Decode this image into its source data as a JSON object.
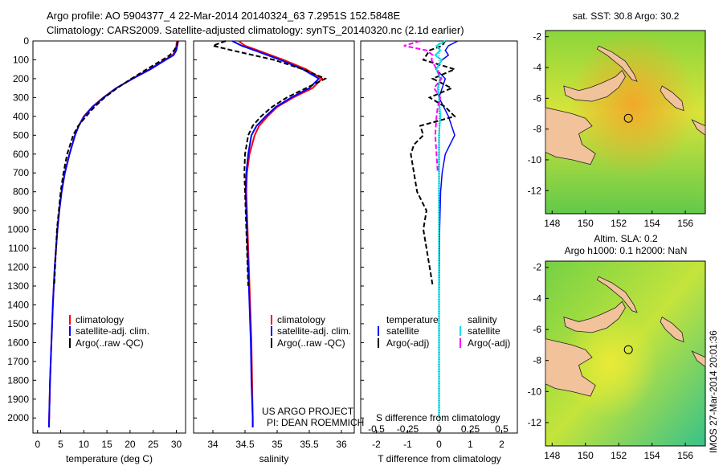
{
  "header": {
    "line1": "Argo profile: AO 5904377_4 22-Mar-2014 20140324_63 7.2951S 152.5848E",
    "line2": "Climatology: CARS2009. Satellite-adjusted climatology: synTS_20140320.nc (2.1d earlier)"
  },
  "colors": {
    "climatology": "#ff0000",
    "satellite": "#0000ff",
    "argo": "#000000",
    "sal_satellite": "#00e5ee",
    "sal_argo": "#ff00ff",
    "land": "#f2c29a"
  },
  "chart_data": [
    {
      "type": "line",
      "name": "temperature-profile",
      "xlabel": "temperature (deg C)",
      "ylabel": "",
      "xlim": [
        -1,
        32
      ],
      "ylim": [
        2080,
        0
      ],
      "xticks": [
        "0",
        "5",
        "10",
        "15",
        "20",
        "25",
        "30"
      ],
      "yticks": [
        "0",
        "100",
        "200",
        "300",
        "400",
        "500",
        "600",
        "700",
        "800",
        "900",
        "1000",
        "1100",
        "1200",
        "1300",
        "1400",
        "1500",
        "1600",
        "1700",
        "1800",
        "1900",
        "2000"
      ],
      "legend": [
        "climatology",
        "satellite-adj. clim.",
        "Argo(..raw -QC)"
      ],
      "series": [
        {
          "name": "climatology",
          "depth": [
            0,
            25,
            50,
            75,
            100,
            150,
            200,
            250,
            300,
            350,
            400,
            450,
            500,
            600,
            700,
            800,
            900,
            1000,
            1200,
            1400,
            1600,
            1800,
            2000,
            2050
          ],
          "values": [
            30.1,
            30.0,
            29.8,
            29.2,
            27.5,
            24.2,
            20.5,
            17.0,
            14.2,
            11.8,
            10.0,
            8.9,
            8.1,
            6.9,
            5.9,
            5.2,
            4.7,
            4.3,
            3.7,
            3.3,
            3.0,
            2.7,
            2.5,
            2.45
          ]
        },
        {
          "name": "satellite-adj. clim.",
          "depth": [
            0,
            25,
            50,
            75,
            100,
            150,
            200,
            250,
            300,
            350,
            400,
            450,
            500,
            600,
            700,
            800,
            900,
            1000,
            1200,
            1400,
            1600,
            1800,
            2000,
            2050
          ],
          "values": [
            30.4,
            30.2,
            30.0,
            29.4,
            27.7,
            24.4,
            20.6,
            17.0,
            14.3,
            11.9,
            10.1,
            8.9,
            8.1,
            6.9,
            5.9,
            5.2,
            4.7,
            4.3,
            3.7,
            3.3,
            3.0,
            2.7,
            2.5,
            2.45
          ]
        },
        {
          "name": "Argo(..raw -QC)",
          "depth": [
            0,
            25,
            50,
            75,
            100,
            150,
            200,
            250,
            300,
            350,
            400,
            450,
            500,
            600,
            700,
            800,
            900,
            1000,
            1200,
            1300
          ],
          "values": [
            30.3,
            30.1,
            29.5,
            28.6,
            27.0,
            23.6,
            20.3,
            17.2,
            14.5,
            12.3,
            10.5,
            8.8,
            7.7,
            6.4,
            5.6,
            5.0,
            4.6,
            4.2,
            3.8,
            3.6
          ]
        }
      ]
    },
    {
      "type": "line",
      "name": "salinity-profile",
      "xlabel": "salinity",
      "xlim": [
        33.7,
        36.2
      ],
      "ylim": [
        2080,
        0
      ],
      "xticks": [
        "34",
        "34.5",
        "35",
        "35.5",
        "36"
      ],
      "legend": [
        "climatology",
        "satellite-adj. clim.",
        "Argo(..raw -QC)"
      ],
      "annotation": [
        "US ARGO PROJECT",
        "PI: DEAN ROEMMICH"
      ],
      "series": [
        {
          "name": "climatology",
          "depth": [
            0,
            25,
            50,
            100,
            150,
            200,
            250,
            300,
            350,
            400,
            450,
            500,
            600,
            700,
            800,
            1000,
            1200,
            1400,
            1600,
            1800,
            2000,
            2050
          ],
          "values": [
            34.4,
            34.5,
            34.7,
            35.1,
            35.45,
            35.7,
            35.55,
            35.25,
            35.0,
            34.85,
            34.72,
            34.65,
            34.57,
            34.53,
            34.52,
            34.54,
            34.56,
            34.58,
            34.6,
            34.61,
            34.62,
            34.62
          ]
        },
        {
          "name": "satellite-adj. clim.",
          "depth": [
            0,
            25,
            50,
            100,
            150,
            200,
            250,
            300,
            350,
            400,
            450,
            500,
            600,
            700,
            800,
            1000,
            1200,
            1400,
            1600,
            1800,
            2000,
            2050
          ],
          "values": [
            34.3,
            34.45,
            34.65,
            35.05,
            35.4,
            35.65,
            35.5,
            35.22,
            34.98,
            34.82,
            34.68,
            34.6,
            34.55,
            34.52,
            34.51,
            34.53,
            34.55,
            34.57,
            34.59,
            34.6,
            34.62,
            34.62
          ]
        },
        {
          "name": "Argo(..raw -QC)",
          "depth": [
            0,
            25,
            50,
            100,
            150,
            200,
            250,
            300,
            350,
            400,
            450,
            500,
            600,
            700,
            800,
            1000,
            1200,
            1300
          ],
          "values": [
            34.2,
            34.0,
            34.3,
            34.95,
            35.4,
            35.75,
            35.45,
            35.15,
            34.92,
            34.75,
            34.62,
            34.55,
            34.5,
            34.49,
            34.5,
            34.52,
            34.54,
            34.55
          ]
        }
      ]
    },
    {
      "type": "line",
      "name": "difference-profile",
      "xlabel": "T difference from climatology",
      "xlabel_top": "S difference from climatology",
      "xlim": [
        -2.5,
        2.5
      ],
      "ylim": [
        2080,
        0
      ],
      "xticks": [
        "-2",
        "-1",
        "0",
        "1",
        "2"
      ],
      "xticks_s": [
        "-0.5",
        "-0.25",
        "0",
        "0.25",
        "0.5"
      ],
      "legend_t_title": "temperature",
      "legend_s_title": "salinity",
      "legend": [
        "satellite",
        "Argo(-adj)",
        "satellite",
        "Argo(-adj)"
      ],
      "series": [
        {
          "name": "T satellite",
          "depth": [
            0,
            25,
            50,
            75,
            100,
            150,
            200,
            250,
            300,
            400,
            500,
            600,
            700,
            800,
            1000,
            1500,
            2000
          ],
          "values": [
            0.6,
            0.3,
            0.2,
            0.3,
            0.1,
            -0.1,
            0.2,
            0.1,
            0.0,
            0.3,
            0.5,
            0.2,
            0.1,
            0.05,
            0.02,
            0.0,
            0.0
          ]
        },
        {
          "name": "T Argo(-adj)",
          "depth": [
            0,
            25,
            50,
            75,
            100,
            150,
            200,
            250,
            300,
            350,
            400,
            450,
            500,
            550,
            600,
            700,
            800,
            900,
            1000,
            1100,
            1200,
            1300
          ],
          "values": [
            0.2,
            0.1,
            -0.3,
            -0.4,
            -0.5,
            0.5,
            -0.2,
            0.4,
            -0.3,
            0.2,
            0.5,
            -0.6,
            -0.5,
            -0.8,
            -0.9,
            -0.8,
            -0.7,
            -0.4,
            -0.5,
            -0.4,
            -0.3,
            -0.2
          ]
        },
        {
          "name": "S satellite",
          "depth": [
            0,
            25,
            50,
            75,
            100,
            150,
            200,
            250,
            300,
            400,
            500,
            700,
            1000,
            1500,
            2000
          ],
          "values": [
            0.05,
            -0.02,
            0.01,
            -0.03,
            0.02,
            -0.02,
            0.01,
            -0.01,
            0.0,
            0.01,
            0.0,
            0.0,
            0.0,
            0.0,
            0.0
          ]
        },
        {
          "name": "S Argo(-adj)",
          "depth": [
            0,
            25,
            50,
            75,
            100,
            150,
            200,
            250,
            300,
            350,
            400,
            500,
            600,
            700
          ],
          "values": [
            -0.15,
            -0.28,
            -0.1,
            -0.05,
            -0.06,
            -0.02,
            0.02,
            -0.04,
            0.01,
            -0.01,
            -0.02,
            -0.03,
            -0.02,
            -0.01
          ]
        }
      ]
    },
    {
      "type": "heatmap",
      "name": "sst-map",
      "title": "sat. SST: 30.8  Argo: 30.2",
      "xticks": [
        "148",
        "150",
        "152",
        "154",
        "156"
      ],
      "yticks": [
        "-2",
        "-4",
        "-6",
        "-8",
        "-10",
        "-12"
      ],
      "xlim": [
        147.6,
        157.2
      ],
      "ylim": [
        -13.5,
        -1.6
      ],
      "argo_position": {
        "lon": 152.58,
        "lat": -7.3
      }
    },
    {
      "type": "heatmap",
      "name": "sla-map",
      "title": "Altim. SLA: 0.2",
      "subtitle": "Argo h1000: 0.1  h2000: NaN",
      "xticks": [
        "148",
        "150",
        "152",
        "154",
        "156"
      ],
      "yticks": [
        "-2",
        "-4",
        "-6",
        "-8",
        "-10",
        "-12"
      ],
      "xlim": [
        147.6,
        157.2
      ],
      "ylim": [
        -13.5,
        -1.6
      ],
      "argo_position": {
        "lon": 152.58,
        "lat": -7.3
      }
    }
  ],
  "footer": {
    "stamp": "IMOS 27-Mar-2014 20:01:36"
  }
}
